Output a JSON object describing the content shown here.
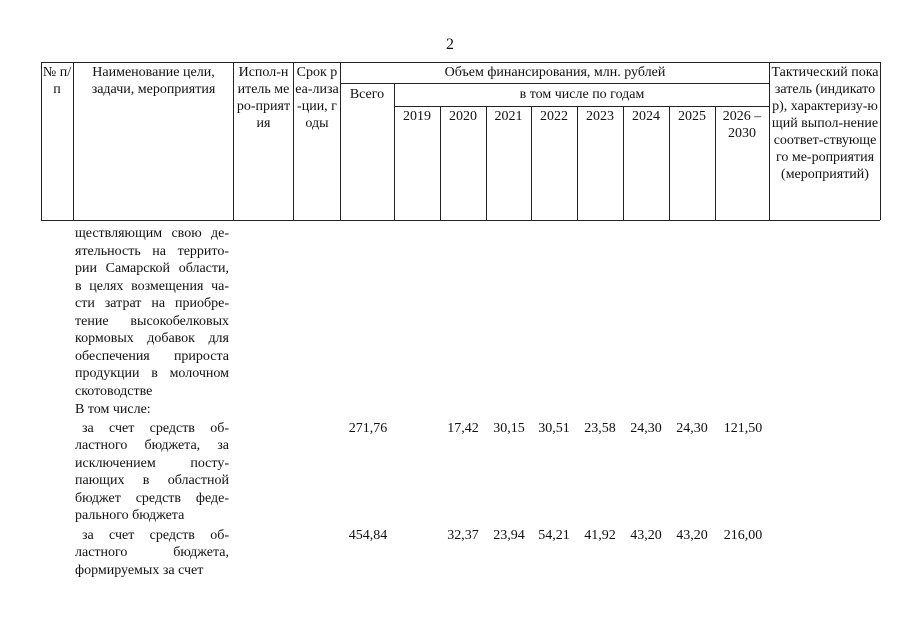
{
  "page_number": "2",
  "header": {
    "num": "№ п/п",
    "name": "Наименование цели, задачи, мероприятия",
    "executor": "Испол-нитель меро-приятия",
    "term": "Срок реа-лиза-ции, годы",
    "funding": "Объем финансирования, млн. рублей",
    "total": "Всего",
    "by_years": "в том числе по годам",
    "years": [
      "2019",
      "2020",
      "2021",
      "2022",
      "2023",
      "2024",
      "2025",
      "2026 – 2030"
    ],
    "indicator": "Тактический показатель (индикатор), характеризу-ющий выпол-нение соответ-ствующего ме-роприятия (мероприятий)"
  },
  "body": {
    "continuation_lines": [
      "ществляющим свою де-",
      "ятельность на террито-",
      "рии Самарской области,",
      "в целях возмещения ча-",
      "сти затрат на приобре-",
      "тение высокобелковых",
      "кормовых добавок для",
      "обеспечения прироста",
      "продукции в молочном",
      "скотоводстве"
    ],
    "including": "В том числе:",
    "rows": [
      {
        "lines": [
          "за счет средств об-",
          "ластного бюджета, за",
          "исключением посту-",
          "пающих в областной",
          "бюджет средств феде-",
          "рального бюджета"
        ],
        "total": "271,76",
        "values": [
          "",
          "17,42",
          "30,15",
          "30,51",
          "23,58",
          "24,30",
          "24,30",
          "121,50"
        ]
      },
      {
        "lines": [
          "за счет средств об-",
          "ластного бюджета,",
          "формируемых за счет"
        ],
        "total": "454,84",
        "values": [
          "",
          "32,37",
          "23,94",
          "54,21",
          "41,92",
          "43,20",
          "43,20",
          "216,00"
        ]
      }
    ]
  }
}
